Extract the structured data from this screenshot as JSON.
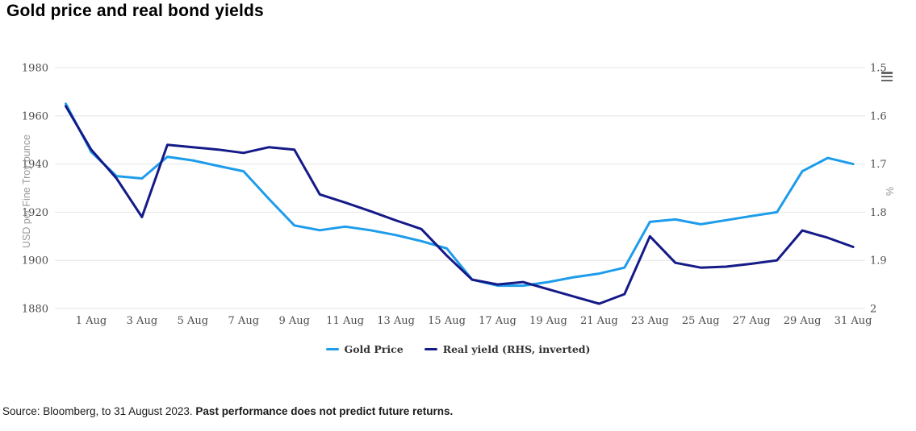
{
  "title": "Gold price and real bond yields",
  "footer": {
    "source": "Source: Bloomberg, to 31 August 2023. ",
    "disclaimer": "Past performance does not predict future returns."
  },
  "icons": {
    "export_menu": "hamburger-menu-icon"
  },
  "legend": {
    "items": [
      {
        "label": "Gold Price",
        "color": "#1d9ceb"
      },
      {
        "label": "Real yield (RHS, inverted)",
        "color": "#141a87"
      }
    ]
  },
  "colors": {
    "gold_line": "#1d9ceb",
    "yield_line": "#141a87",
    "gridline": "#e6e6e6",
    "tick_text": "#4d4d4d",
    "axis_title": "#999999",
    "menu_icon": "#666666"
  },
  "chart_data": {
    "type": "line",
    "x": [
      "31 Jul",
      "1 Aug",
      "2 Aug",
      "3 Aug",
      "4 Aug",
      "5 Aug",
      "6 Aug",
      "7 Aug",
      "8 Aug",
      "9 Aug",
      "10 Aug",
      "11 Aug",
      "12 Aug",
      "13 Aug",
      "14 Aug",
      "15 Aug",
      "16 Aug",
      "17 Aug",
      "18 Aug",
      "19 Aug",
      "20 Aug",
      "21 Aug",
      "22 Aug",
      "23 Aug",
      "24 Aug",
      "25 Aug",
      "26 Aug",
      "27 Aug",
      "28 Aug",
      "29 Aug",
      "30 Aug",
      "31 Aug"
    ],
    "x_tick_labels": [
      "1 Aug",
      "3 Aug",
      "5 Aug",
      "7 Aug",
      "9 Aug",
      "11 Aug",
      "13 Aug",
      "15 Aug",
      "17 Aug",
      "19 Aug",
      "21 Aug",
      "23 Aug",
      "25 Aug",
      "27 Aug",
      "29 Aug",
      "31 Aug"
    ],
    "series": [
      {
        "name": "Gold Price",
        "axis": "left",
        "color": "#1d9ceb",
        "values": [
          1965,
          1945,
          1935,
          1934,
          1943,
          1941.5,
          1939.2,
          1937,
          1925.5,
          1914.5,
          1912.5,
          1914,
          1912.5,
          1910.5,
          1908,
          1905,
          1892,
          1889.5,
          1889.5,
          1891,
          1893,
          1894.5,
          1897,
          1916,
          1917,
          1915,
          1916.7,
          1918.4,
          1920,
          1937,
          1942.5,
          1940
        ]
      },
      {
        "name": "Real yield (RHS, inverted)",
        "axis": "right",
        "color": "#141a87",
        "values": [
          1.58,
          1.67,
          1.73,
          1.81,
          1.66,
          1.665,
          1.67,
          1.677,
          1.665,
          1.67,
          1.763,
          1.78,
          1.798,
          1.817,
          1.835,
          1.89,
          1.94,
          1.95,
          1.945,
          1.96,
          1.975,
          1.99,
          1.97,
          1.85,
          1.905,
          1.915,
          1.913,
          1.907,
          1.9,
          1.838,
          1.853,
          1.872
        ]
      }
    ],
    "left_axis": {
      "title": "USD per Fine Troy ounce",
      "tick_labels": [
        "1980",
        "1960",
        "1940",
        "1920",
        "1900",
        "1880"
      ],
      "min": 1880,
      "max": 1980
    },
    "right_axis": {
      "title": "%",
      "tick_labels": [
        "1.5",
        "1.6",
        "1.7",
        "1.8",
        "1.9",
        "2"
      ],
      "min": 1.5,
      "max": 2,
      "inverted": true
    },
    "grid": "horizontal-only",
    "legend_position": "bottom-center"
  }
}
